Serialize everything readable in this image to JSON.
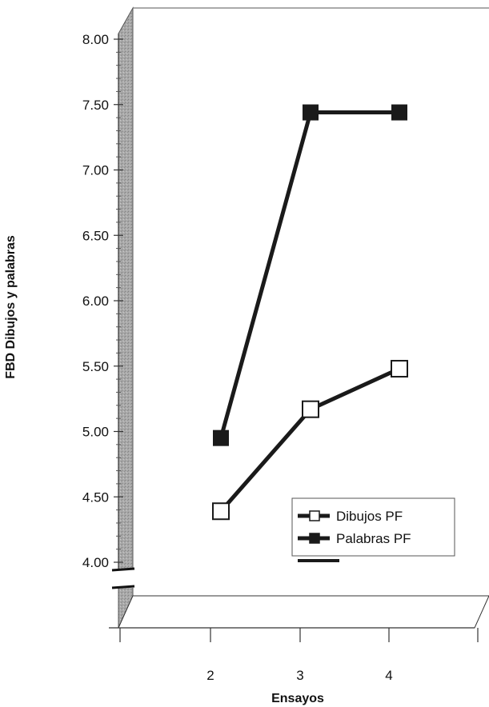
{
  "chart_data": {
    "type": "line",
    "xlabel": "Ensayos",
    "ylabel": "FBD Dibujos y palabras",
    "categories": [
      "2",
      "3",
      "4"
    ],
    "x_ticks": [
      "2",
      "3",
      "4"
    ],
    "ylim": [
      4.0,
      8.0
    ],
    "y_ticks": [
      "4.00",
      "4.50",
      "5.00",
      "5.50",
      "6.00",
      "6.50",
      "7.00",
      "7.50",
      "8.00"
    ],
    "grid": false,
    "legend_position": "bottom-right",
    "series": [
      {
        "name": "Dibujos PF",
        "values": [
          4.39,
          5.17,
          5.48
        ],
        "marker": "open-square",
        "color": "#1a1a1a"
      },
      {
        "name": "Palabras PF",
        "values": [
          4.95,
          7.44,
          7.44
        ],
        "marker": "filled-square",
        "color": "#1a1a1a"
      }
    ]
  }
}
